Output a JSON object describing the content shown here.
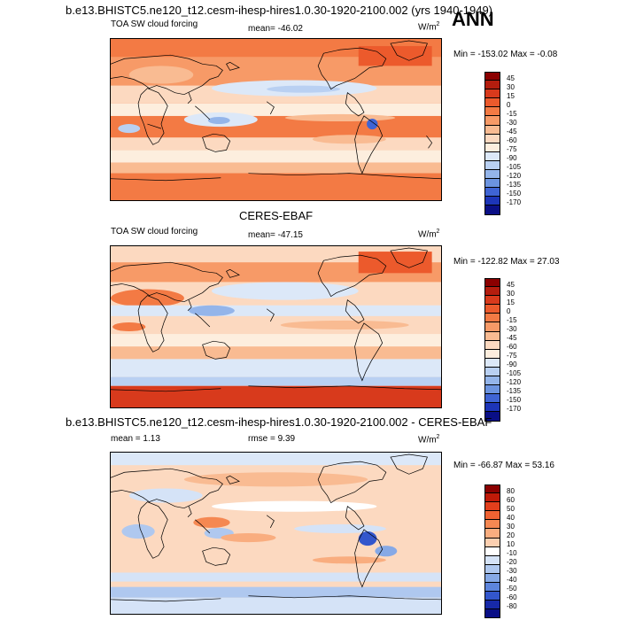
{
  "figure_title": "b.e13.BHISTC5.ne120_t12.cesm-ihesp-hires1.0.30-1920-2100.002 (yrs 1940-1949)",
  "season": "ANN",
  "units_base": "W/m",
  "units_exp": "2",
  "panels": [
    {
      "id": "model",
      "heading": "",
      "left_label": "TOA SW cloud forcing",
      "center_label": "mean= -46.02",
      "minmax": "Min = -153.02 Max =  -0.08",
      "levels": [
        "45",
        "30",
        "15",
        "0",
        "-15",
        "-30",
        "-45",
        "-60",
        "-75",
        "-90",
        "-105",
        "-120",
        "-135",
        "-150",
        "-170"
      ]
    },
    {
      "id": "obs",
      "heading": "CERES-EBAF",
      "left_label": "TOA SW cloud forcing",
      "center_label": "mean= -47.15",
      "minmax": "Min = -122.82 Max =  27.03",
      "levels": [
        "45",
        "30",
        "15",
        "0",
        "-15",
        "-30",
        "-45",
        "-60",
        "-75",
        "-90",
        "-105",
        "-120",
        "-135",
        "-150",
        "-170"
      ]
    },
    {
      "id": "diff",
      "heading": "b.e13.BHISTC5.ne120_t12.cesm-ihesp-hires1.0.30-1920-2100.002 - CERES-EBAF",
      "left_label": "mean =   1.13",
      "center_label": "rmse =   9.39",
      "minmax": "Min = -66.87 Max =  53.16",
      "levels": [
        "80",
        "60",
        "50",
        "40",
        "30",
        "20",
        "10",
        "-10",
        "-20",
        "-30",
        "-40",
        "-50",
        "-60",
        "-80"
      ]
    }
  ],
  "colors": {
    "abs_scale": [
      "#8b0000",
      "#b41d0e",
      "#d83a1c",
      "#ec5a2c",
      "#f37a44",
      "#f79a67",
      "#f9bb92",
      "#fcd9c0",
      "#fdeede",
      "#dce8f8",
      "#b9d0f2",
      "#94b5ea",
      "#6c94e0",
      "#3f64d4",
      "#1d35b8",
      "#0a0f86"
    ],
    "diff_scale": [
      "#8b0000",
      "#c01a08",
      "#e23f1c",
      "#f06232",
      "#f58852",
      "#f9ad7f",
      "#fccfb0",
      "#ffffff",
      "#d5e3f7",
      "#afc8ef",
      "#86a9e6",
      "#5d85dc",
      "#3356cc",
      "#1729a8",
      "#0a0f86"
    ]
  }
}
